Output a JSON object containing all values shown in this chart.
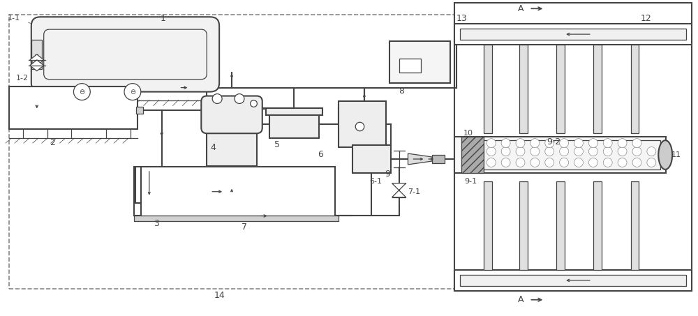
{
  "bg_color": "#ffffff",
  "dashed_border_color": "#777777",
  "line_color": "#444444",
  "lw_main": 1.5,
  "lw_thin": 0.9,
  "lw_extra": 0.6,
  "fig_w": 10.0,
  "fig_h": 4.53
}
